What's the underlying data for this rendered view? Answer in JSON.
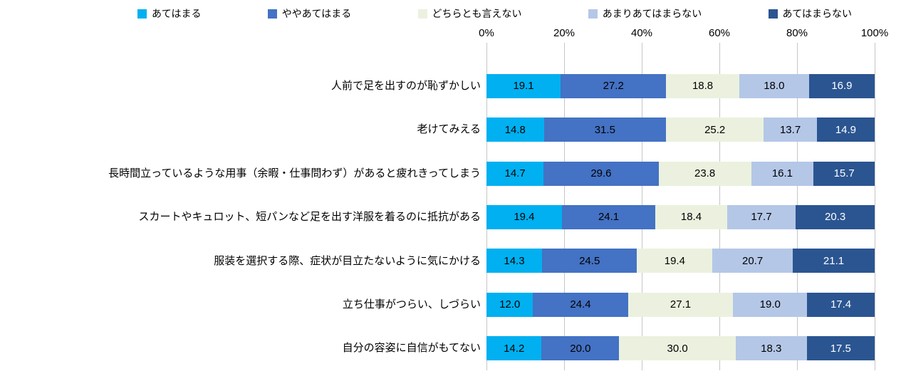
{
  "chart_data": {
    "type": "bar",
    "stacked": true,
    "orientation": "horizontal",
    "title": "",
    "xlabel": "",
    "ylabel": "",
    "legend_position": "top",
    "grid": true,
    "gridline_color": "#c6c6c6",
    "x_axis": {
      "ticks": [
        "0%",
        "20%",
        "40%",
        "60%",
        "80%",
        "100%"
      ],
      "min": 0,
      "max": 100
    },
    "categories": [
      "人前で足を出すのが恥ずかしい",
      "老けてみえる",
      "長時間立っているような用事（余暇・仕事問わず）があると疲れきってしまう",
      "スカートやキュロット、短パンなど足を出す洋服を着るのに抵抗がある",
      "服装を選択する際、症状が目立たないように気にかける",
      "立ち仕事がつらい、しづらい",
      "自分の容姿に自信がもてない"
    ],
    "series": [
      {
        "name": "あてはまる",
        "color": "#00B0F0",
        "text_color": "#000000",
        "values": [
          19.1,
          14.8,
          14.7,
          19.4,
          14.3,
          12.0,
          14.2
        ]
      },
      {
        "name": "ややあてはまる",
        "color": "#4472C4",
        "text_color": "#000000",
        "values": [
          27.2,
          31.5,
          29.6,
          24.1,
          24.5,
          24.4,
          20.0
        ]
      },
      {
        "name": "どちらとも言えない",
        "color": "#EBF1DE",
        "text_color": "#000000",
        "values": [
          18.8,
          25.2,
          23.8,
          18.4,
          19.4,
          27.1,
          30.0
        ]
      },
      {
        "name": "あまりあてはまらない",
        "color": "#B4C7E7",
        "text_color": "#000000",
        "values": [
          18.0,
          13.7,
          16.1,
          17.7,
          20.7,
          19.0,
          18.3
        ]
      },
      {
        "name": "あてはまらない",
        "color": "#2B5591",
        "text_color": "#FFFFFF",
        "values": [
          16.9,
          14.9,
          15.7,
          20.3,
          21.1,
          17.4,
          17.5
        ]
      }
    ]
  }
}
